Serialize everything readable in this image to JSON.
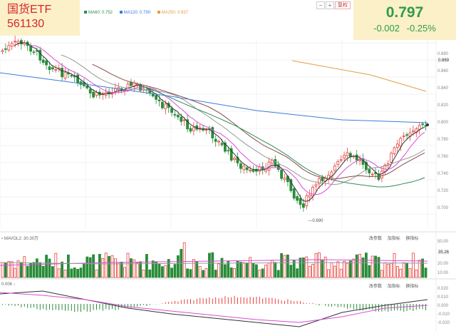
{
  "ticker": {
    "name": "国货ETF",
    "code": "561130"
  },
  "quote": {
    "price": "0.797",
    "change": "-0.002",
    "change_pct": "-0.25%"
  },
  "ma_legend": [
    {
      "key": "ma60",
      "text": "MA60: 0.752",
      "color": "#2e8b57"
    },
    {
      "key": "ma120",
      "text": "MA120: 0.790",
      "color": "#3b7dd8"
    },
    {
      "key": "ma250",
      "text": "MA250: 0.837",
      "color": "#e0a040"
    }
  ],
  "toolbar": {
    "minus": "−",
    "plus": "+",
    "adjust_label": "复权"
  },
  "price_axis": {
    "ticks": [
      "0.880",
      "0.869",
      "0.860",
      "0.840",
      "0.820",
      "0.800",
      "0.780",
      "0.760",
      "0.740",
      "0.720",
      "0.700"
    ]
  },
  "low_marker": "0.690",
  "volume_pane": {
    "label": "MAVOL2: 30.30万",
    "ticks": [
      "50.00",
      "35.26",
      "20.00",
      "10.00"
    ],
    "actions": [
      "改参数",
      "加指标",
      "换指标"
    ]
  },
  "macd_pane": {
    "label": "0.006",
    "ticks": [
      "0.020",
      "0.010",
      "0.000",
      "-0.010",
      "-0.020"
    ],
    "actions": [
      "改参数",
      "加指标",
      "换指标"
    ]
  },
  "colors": {
    "up": "#e8413e",
    "down": "#2a8c3a",
    "ma5": "#333333",
    "ma10": "#d94cd6",
    "ma20": "#999999",
    "ma30": "#8b4a4a",
    "ma60": "#2e8b57",
    "ma120": "#3b7dd8",
    "ma250": "#e0a040"
  }
}
